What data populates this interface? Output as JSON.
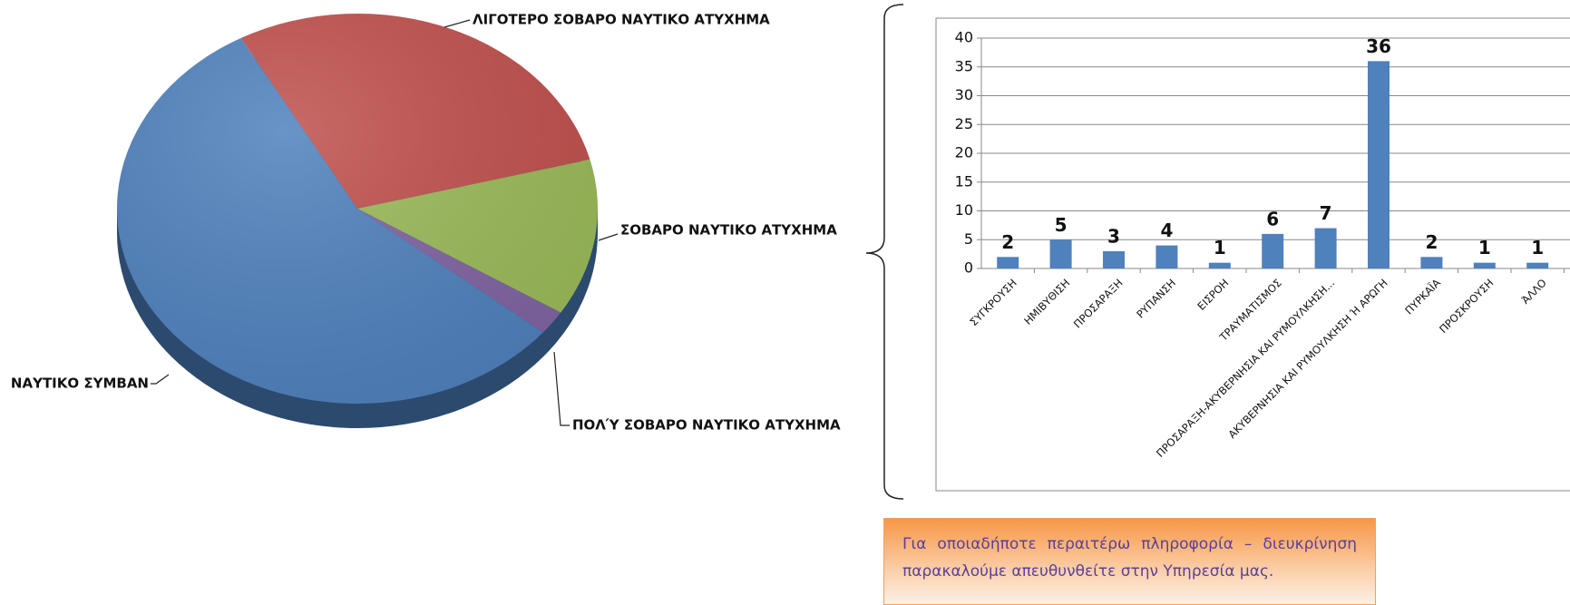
{
  "chart_data": [
    {
      "type": "pie",
      "categories": [
        "ΛΙΓΟΤΕΡΟ ΣΟΒΑΡΟ ΝΑΥΤΙΚΟ ΑΤΥΧΗΜΑ",
        "ΣΟΒΑΡΟ ΝΑΥΤΙΚΟ ΑΤΥΧΗΜΑ",
        "ΠΟΛΎ ΣΟΒΑΡΟ ΝΑΥΤΙΚΟ ΑΤΥΧΗΜΑ",
        "ΝΑΥΤΙΚΟ ΣΥΜΒΑΝ"
      ],
      "values": [
        29,
        13,
        2,
        56
      ],
      "colors": [
        "#c0504d",
        "#9bbb59",
        "#8064a2",
        "#4f81bd"
      ]
    },
    {
      "type": "bar",
      "categories": [
        "ΣΥΓΚΡΟΥΣΗ",
        "ΗΜΙΒΥΘΙΣΗ",
        "ΠΡΟΣΑΡΑΞΗ",
        "ΡΥΠΑΝΣΗ",
        "ΕΙΣΡΟΗ",
        "ΤΡΑΥΜΑΤΙΣΜΟΣ",
        "ΠΡΟΣΑΡΑΞΗ-ΑΚΥΒΕΡΝΗΣΙΑ ΚΑΙ ΡΥΜΟΥΛΚΗΣΗ...",
        "ΑΚΥΒΕΡΝΗΣΙΑ ΚΑΙ ΡΥΜΟΥΛΚΗΣΗ Ή ΑΡΩΓΗ",
        "ΠΥΡΚΑΪΑ",
        "ΠΡΟΣΚΡΟΥΣΗ",
        "ΆΛΛΟ"
      ],
      "values": [
        2,
        5,
        3,
        4,
        1,
        6,
        7,
        36,
        2,
        1,
        1
      ],
      "color": "#4f81bd",
      "ylim": [
        0,
        40
      ],
      "yticks": [
        0,
        5,
        10,
        15,
        20,
        25,
        30,
        35,
        40
      ],
      "grid": true
    }
  ],
  "note": "Για οποιαδήποτε περαιτέρω πληροφορία – διευκρίνηση παρακαλούμε απευθυνθείτε στην Υπηρεσία μας."
}
